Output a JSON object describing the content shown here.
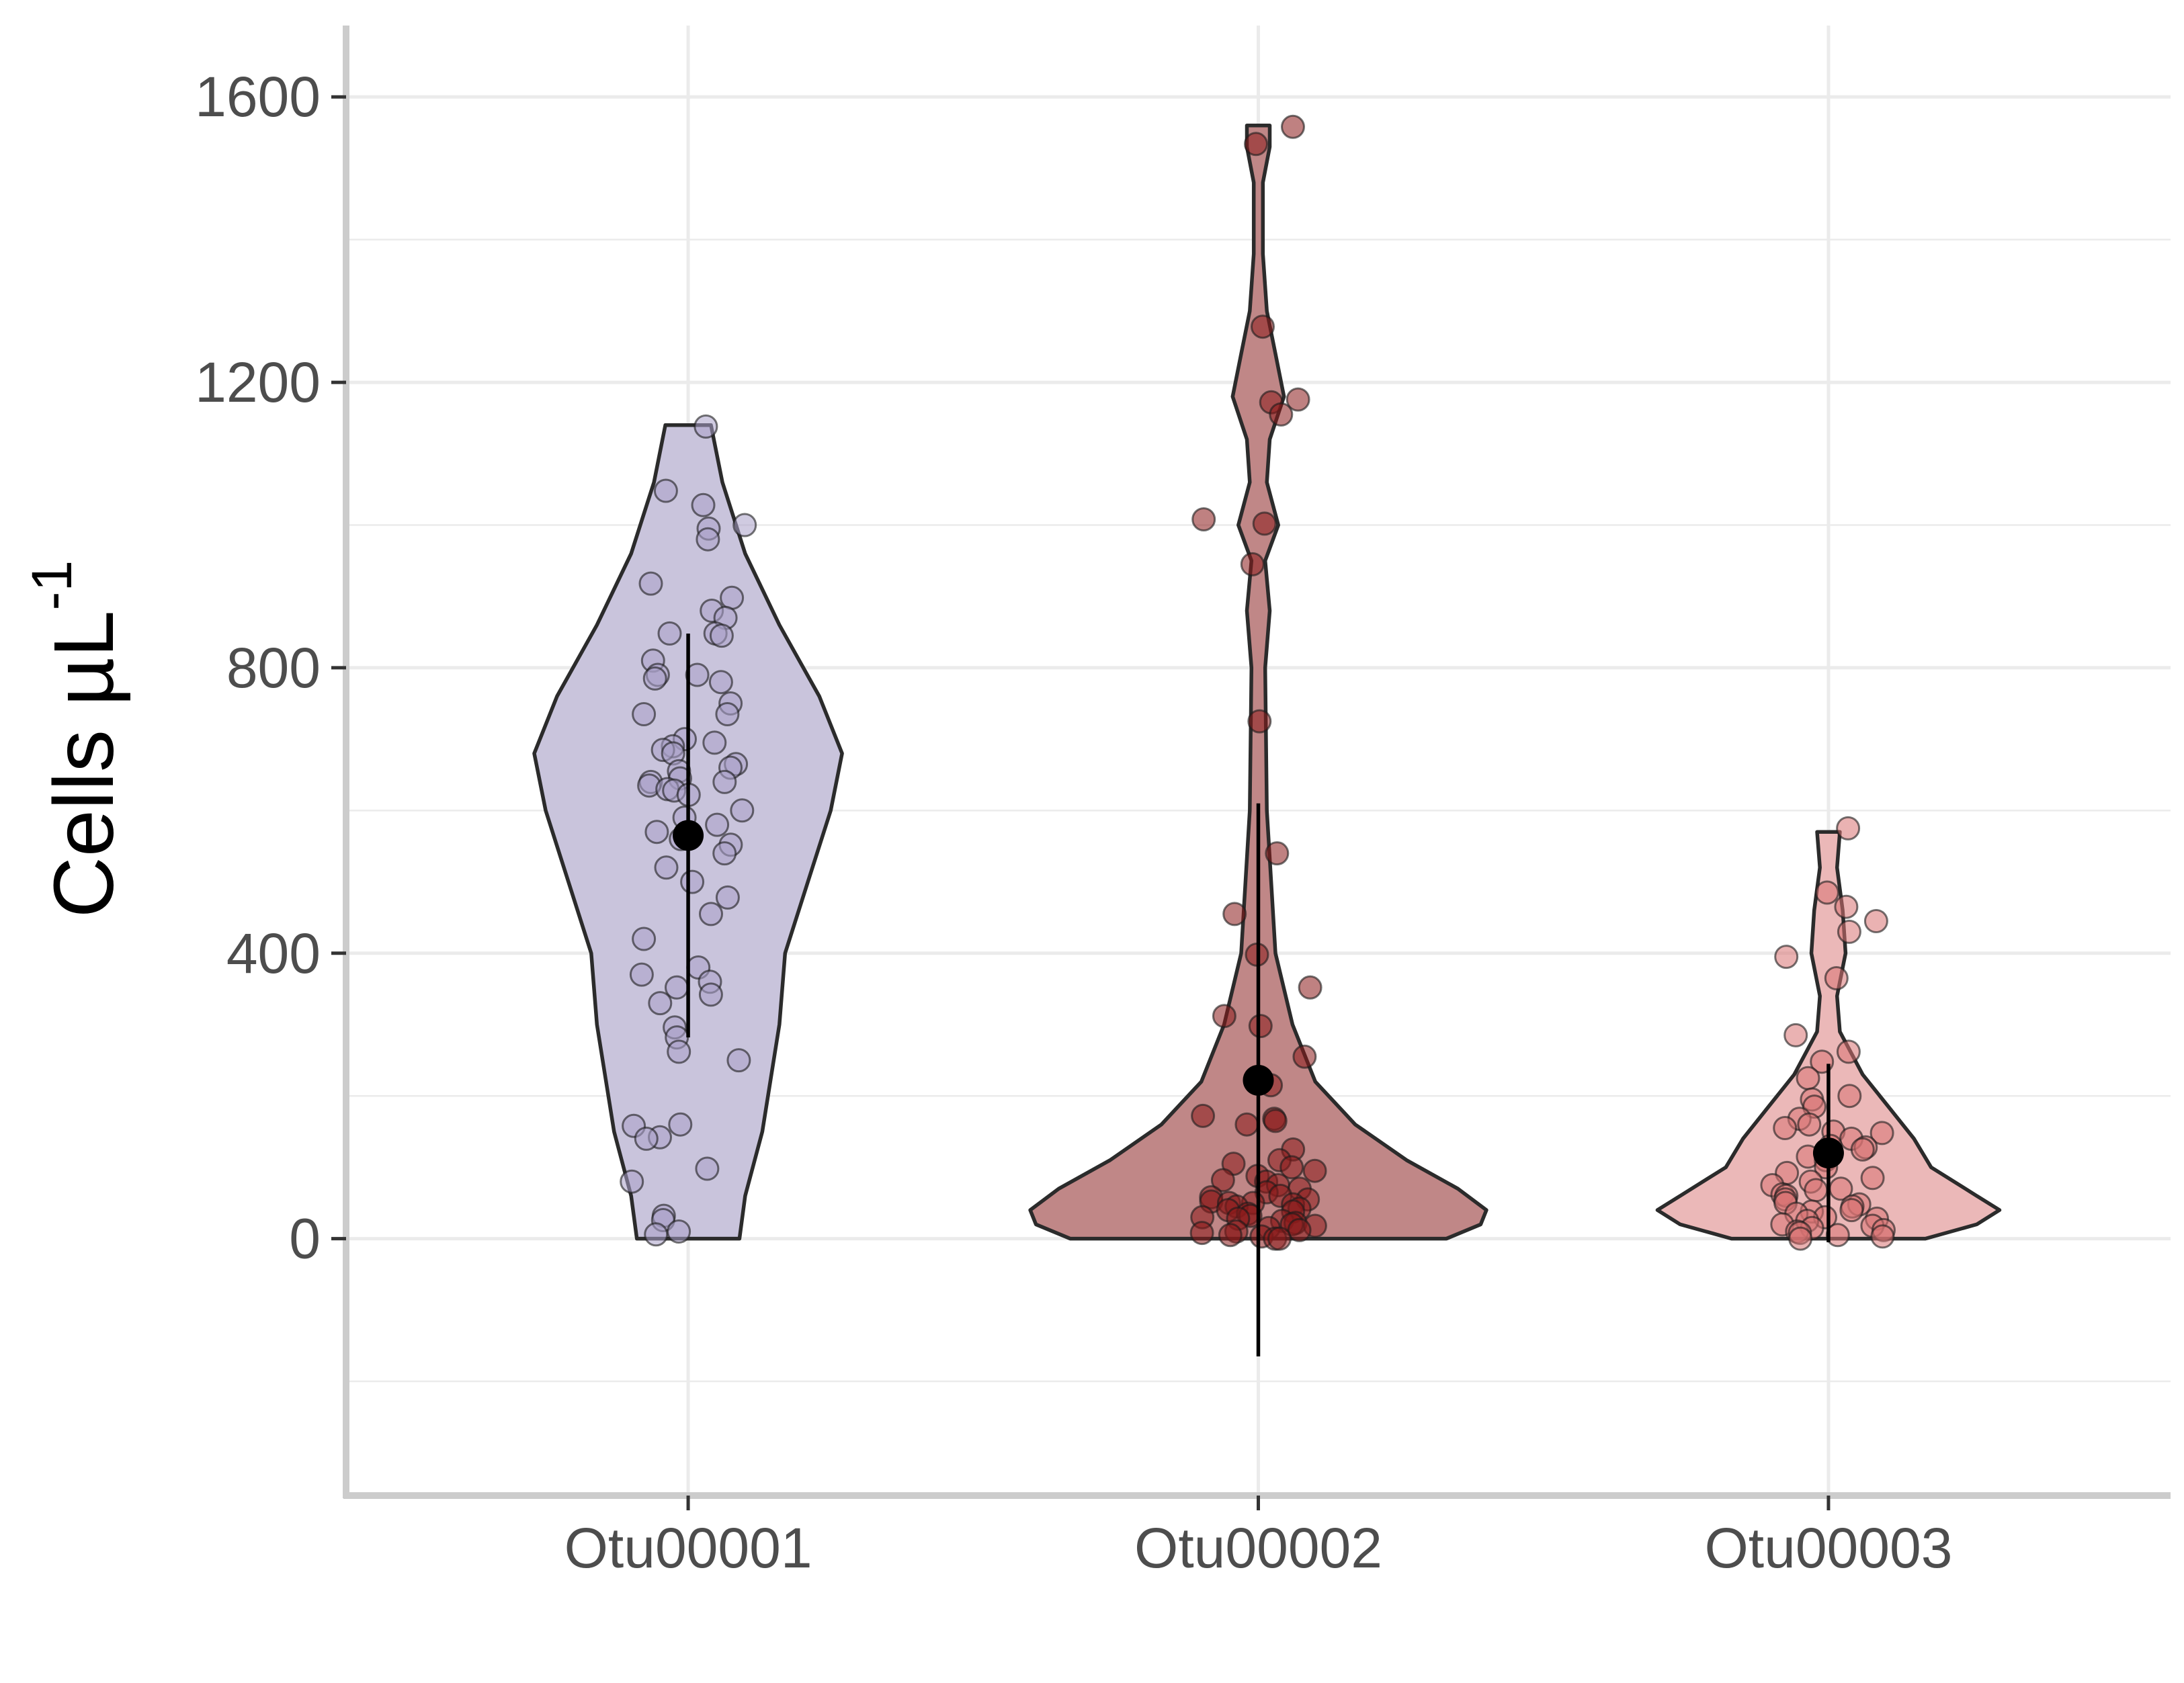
{
  "chart_data": {
    "type": "violin",
    "ylabel": "Cells µL",
    "ylabel_superscript": "-1",
    "xlabel": "",
    "categories": [
      "Otu00001",
      "Otu00002",
      "Otu00003"
    ],
    "ylim": [
      -360,
      1700
    ],
    "yticks": [
      0,
      400,
      800,
      1200,
      1600
    ],
    "y_minor_ticks": [
      -200,
      200,
      600,
      1000,
      1400
    ],
    "grid": true,
    "legend": "none",
    "colors": {
      "Otu00001": {
        "fill": "#c9c4dc",
        "point": "#a9a1c9"
      },
      "Otu00002": {
        "fill": "#c08787",
        "point": "#8b1a1a"
      },
      "Otu00003": {
        "fill": "#ebb8b8",
        "point": "#d97373"
      },
      "outline": "#2b2b2b",
      "summary": "#000000",
      "grid": "#ebebeb",
      "axis": "#cccccc"
    },
    "violin_max_halfwidth": 0.27,
    "series": [
      {
        "category": "Otu00001",
        "summary": {
          "mean": 565,
          "low": 282,
          "high": 848
        },
        "density": [
          [
            0,
            0.09
          ],
          [
            60,
            0.1
          ],
          [
            150,
            0.13
          ],
          [
            300,
            0.16
          ],
          [
            400,
            0.17
          ],
          [
            500,
            0.21
          ],
          [
            600,
            0.25
          ],
          [
            680,
            0.27
          ],
          [
            760,
            0.23
          ],
          [
            860,
            0.16
          ],
          [
            960,
            0.1
          ],
          [
            1060,
            0.06
          ],
          [
            1140,
            0.04
          ]
        ],
        "points": [
          1138,
          1048,
          1028,
          1000,
          995,
          980,
          918,
          898,
          880,
          870,
          848,
          848,
          845,
          810,
          790,
          790,
          785,
          780,
          750,
          735,
          735,
          700,
          695,
          690,
          685,
          680,
          665,
          660,
          655,
          645,
          640,
          640,
          635,
          630,
          628,
          622,
          600,
          590,
          580,
          570,
          560,
          552,
          540,
          520,
          500,
          478,
          455,
          420,
          380,
          370,
          360,
          352,
          342,
          330,
          296,
          282,
          262,
          250,
          160,
          158,
          142,
          140,
          98,
          80,
          32,
          26,
          10,
          6
        ]
      },
      {
        "category": "Otu00002",
        "summary": {
          "mean": 222,
          "low": -165,
          "high": 610
        },
        "density": [
          [
            0,
            0.33
          ],
          [
            20,
            0.39
          ],
          [
            40,
            0.4
          ],
          [
            70,
            0.35
          ],
          [
            110,
            0.26
          ],
          [
            160,
            0.17
          ],
          [
            220,
            0.1
          ],
          [
            300,
            0.06
          ],
          [
            400,
            0.03
          ],
          [
            600,
            0.015
          ],
          [
            800,
            0.012
          ],
          [
            880,
            0.02
          ],
          [
            950,
            0.012
          ],
          [
            1000,
            0.035
          ],
          [
            1060,
            0.015
          ],
          [
            1120,
            0.02
          ],
          [
            1180,
            0.045
          ],
          [
            1240,
            0.03
          ],
          [
            1300,
            0.015
          ],
          [
            1380,
            0.008
          ],
          [
            1480,
            0.008
          ],
          [
            1530,
            0.02
          ],
          [
            1560,
            0.02
          ]
        ],
        "points": [
          1558,
          1534,
          1278,
          1176,
          1172,
          1155,
          1008,
          1002,
          945,
          725,
          540,
          455,
          398,
          352,
          312,
          298,
          255,
          215,
          172,
          168,
          165,
          160,
          125,
          110,
          105,
          100,
          95,
          88,
          82,
          80,
          75,
          70,
          65,
          60,
          58,
          55,
          52,
          50,
          50,
          48,
          45,
          42,
          40,
          38,
          35,
          32,
          30,
          28,
          25,
          22,
          20,
          18,
          15,
          12,
          10,
          8,
          5,
          3,
          0,
          0
        ]
      },
      {
        "category": "Otu00003",
        "summary": {
          "mean": 120,
          "low": -5,
          "high": 245
        },
        "density": [
          [
            0,
            0.17
          ],
          [
            20,
            0.26
          ],
          [
            40,
            0.3
          ],
          [
            60,
            0.26
          ],
          [
            100,
            0.18
          ],
          [
            140,
            0.15
          ],
          [
            180,
            0.11
          ],
          [
            230,
            0.06
          ],
          [
            290,
            0.02
          ],
          [
            340,
            0.015
          ],
          [
            400,
            0.03
          ],
          [
            460,
            0.025
          ],
          [
            520,
            0.015
          ],
          [
            570,
            0.02
          ]
        ],
        "points": [
          575,
          485,
          465,
          445,
          430,
          395,
          365,
          285,
          262,
          248,
          225,
          200,
          195,
          185,
          168,
          160,
          155,
          150,
          148,
          140,
          130,
          128,
          125,
          115,
          110,
          100,
          92,
          85,
          80,
          75,
          70,
          68,
          62,
          60,
          55,
          50,
          48,
          45,
          40,
          38,
          35,
          30,
          28,
          25,
          20,
          18,
          15,
          12,
          10,
          8,
          5,
          3,
          0
        ]
      }
    ]
  }
}
